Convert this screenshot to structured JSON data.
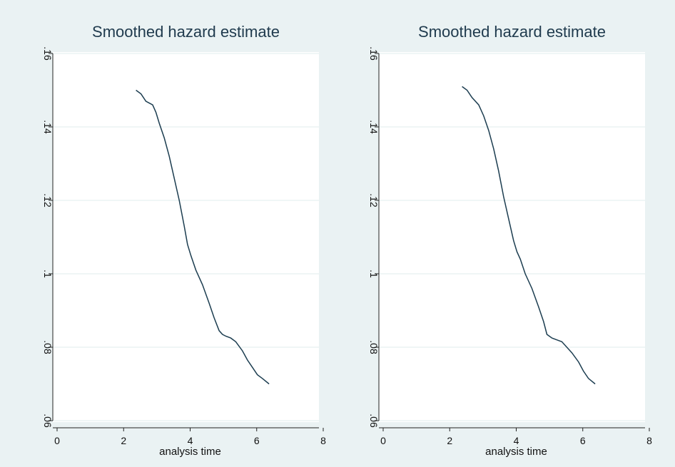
{
  "chart_data": [
    {
      "type": "line",
      "title": "Smoothed hazard estimate",
      "xlabel": "analysis time",
      "ylabel": "",
      "xlim": [
        0,
        8
      ],
      "ylim": [
        0.06,
        0.16
      ],
      "xticks": [
        0,
        2,
        4,
        6,
        8
      ],
      "xtick_labels": [
        "0",
        "2",
        "4",
        "6",
        "8"
      ],
      "yticks": [
        0.06,
        0.08,
        0.1,
        0.12,
        0.14,
        0.16
      ],
      "ytick_labels": [
        ".06",
        ".08",
        ".1",
        ".12",
        ".14",
        ".16"
      ],
      "grid": true,
      "series": [
        {
          "x": [
            2.5,
            2.65,
            2.8,
            3.0,
            3.1,
            3.2,
            3.35,
            3.5,
            3.65,
            3.8,
            3.95,
            4.05,
            4.15,
            4.3,
            4.5,
            4.7,
            4.85,
            5.0,
            5.1,
            5.2,
            5.35,
            5.5,
            5.7,
            5.85,
            6.0,
            6.15,
            6.3,
            6.5
          ],
          "y": [
            0.15,
            0.149,
            0.147,
            0.146,
            0.144,
            0.141,
            0.137,
            0.132,
            0.126,
            0.12,
            0.113,
            0.108,
            0.105,
            0.101,
            0.097,
            0.092,
            0.088,
            0.0845,
            0.0835,
            0.083,
            0.0825,
            0.0815,
            0.079,
            0.0765,
            0.0745,
            0.0725,
            0.0715,
            0.07
          ]
        }
      ]
    },
    {
      "type": "line",
      "title": "Smoothed hazard estimate",
      "xlabel": "analysis time",
      "ylabel": "",
      "xlim": [
        0,
        8
      ],
      "ylim": [
        0.06,
        0.16
      ],
      "xticks": [
        0,
        2,
        4,
        6,
        8
      ],
      "xtick_labels": [
        "0",
        "2",
        "4",
        "6",
        "8"
      ],
      "yticks": [
        0.06,
        0.08,
        0.1,
        0.12,
        0.14,
        0.16
      ],
      "ytick_labels": [
        ".06",
        ".08",
        ".1",
        ".12",
        ".14",
        ".16"
      ],
      "grid": true,
      "series": [
        {
          "x": [
            2.5,
            2.65,
            2.8,
            3.0,
            3.15,
            3.3,
            3.45,
            3.6,
            3.75,
            3.9,
            4.05,
            4.15,
            4.25,
            4.4,
            4.6,
            4.8,
            4.95,
            5.05,
            5.2,
            5.35,
            5.5,
            5.65,
            5.8,
            6.0,
            6.15,
            6.3,
            6.5
          ],
          "y": [
            0.151,
            0.15,
            0.148,
            0.146,
            0.143,
            0.139,
            0.134,
            0.128,
            0.121,
            0.115,
            0.109,
            0.106,
            0.104,
            0.1,
            0.096,
            0.091,
            0.087,
            0.0835,
            0.0825,
            0.082,
            0.0815,
            0.08,
            0.0785,
            0.076,
            0.0735,
            0.0715,
            0.07
          ]
        }
      ]
    }
  ]
}
